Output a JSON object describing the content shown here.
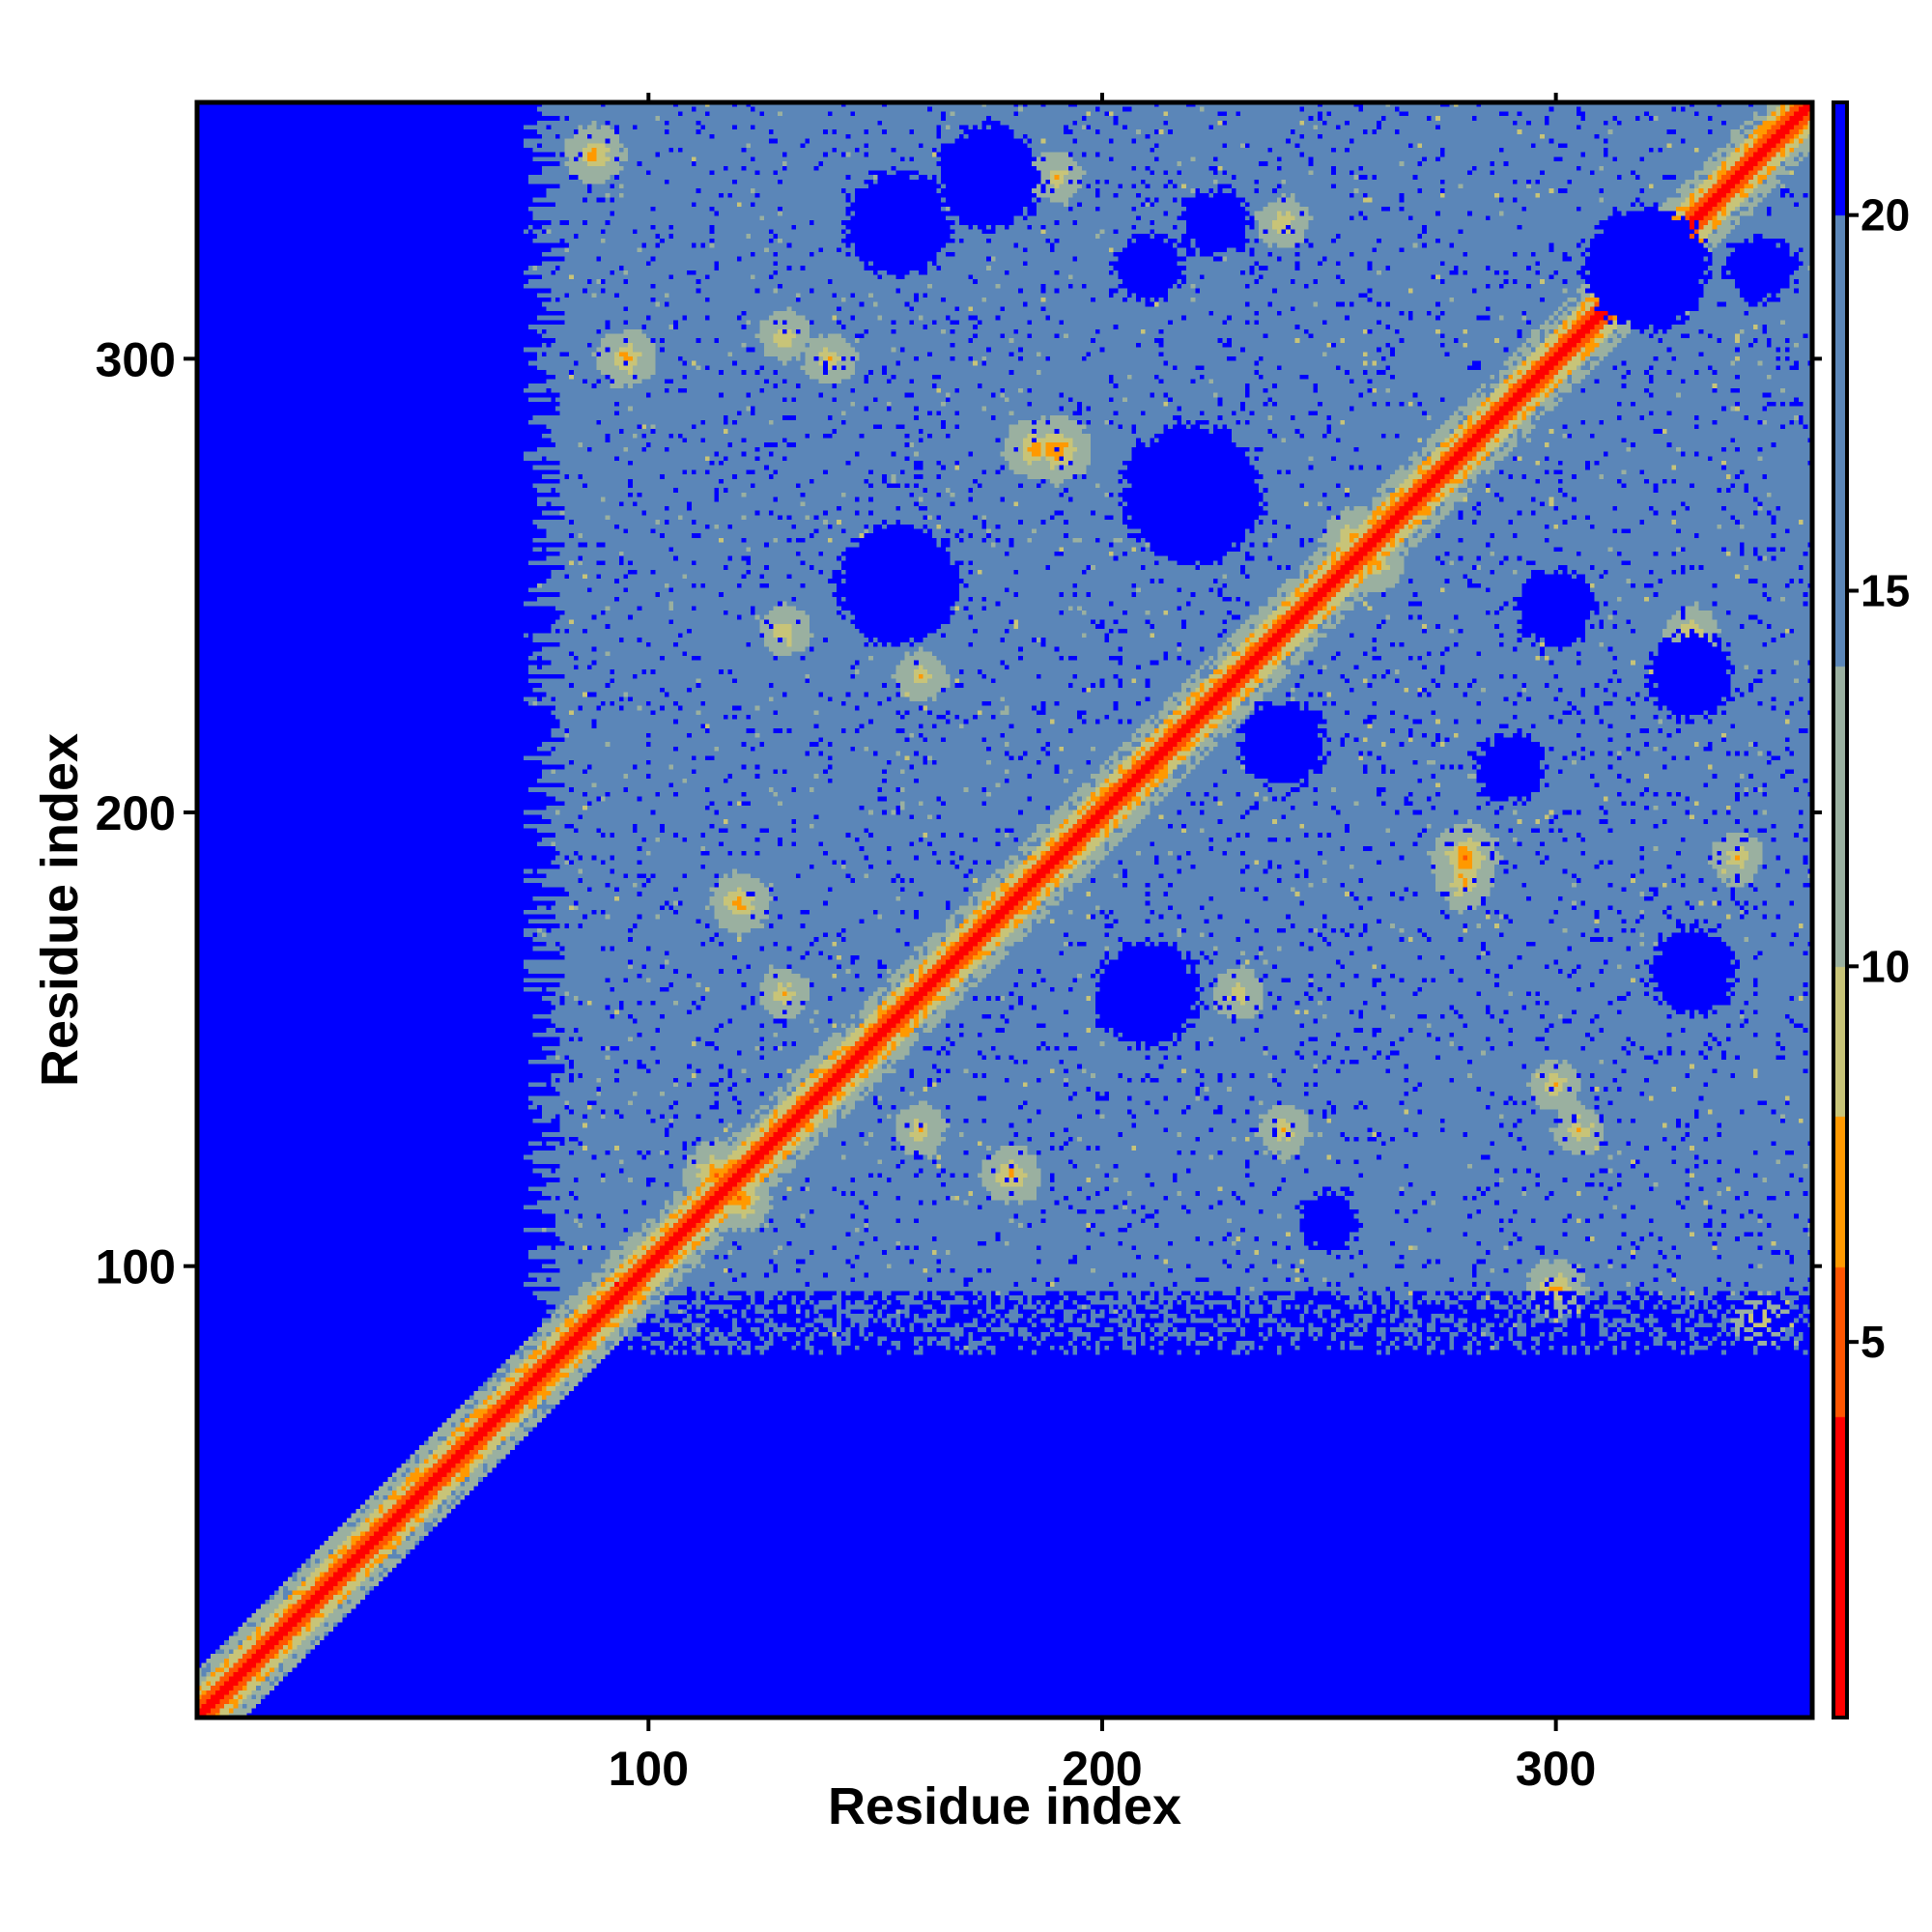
{
  "chart_data": {
    "type": "heatmap",
    "title": "",
    "xlabel": "Residue index",
    "ylabel": "Residue index",
    "n_residues": 356,
    "xlim": [
      1,
      356
    ],
    "ylim": [
      1,
      356
    ],
    "x_ticks": [
      100,
      200,
      300
    ],
    "y_ticks": [
      100,
      200,
      300
    ],
    "colorbar": {
      "ticks": [
        5,
        10,
        15,
        20
      ],
      "range": [
        0,
        21.5
      ],
      "levels": [
        {
          "max": 4,
          "color": "#ff0000"
        },
        {
          "max": 6,
          "color": "#ff5500"
        },
        {
          "max": 8,
          "color": "#ff9900"
        },
        {
          "max": 10,
          "color": "#c8c478"
        },
        {
          "max": 14,
          "color": "#9ab0a0"
        },
        {
          "max": 20,
          "color": "#5b86b8"
        },
        {
          "max": 21.5,
          "color": "#0000ff"
        }
      ]
    },
    "description_note": "Residue-residue distance map; lower-left triangle masked except near diagonal; upper triangle shows contact regions.",
    "contact_hotspots": [
      {
        "i": 115,
        "j": 120,
        "d": 5
      },
      {
        "i": 280,
        "j": 190,
        "d": 5
      },
      {
        "i": 180,
        "j": 120,
        "d": 6
      },
      {
        "i": 300,
        "j": 95,
        "d": 6
      },
      {
        "i": 260,
        "j": 255,
        "d": 6
      },
      {
        "i": 185,
        "j": 280,
        "d": 6
      },
      {
        "i": 345,
        "j": 88,
        "d": 6
      },
      {
        "i": 130,
        "j": 160,
        "d": 7
      },
      {
        "i": 230,
        "j": 160,
        "d": 7
      },
      {
        "i": 330,
        "j": 240,
        "d": 7
      },
      {
        "i": 340,
        "j": 190,
        "d": 7
      },
      {
        "i": 240,
        "j": 130,
        "d": 7
      },
      {
        "i": 140,
        "j": 300,
        "d": 7
      },
      {
        "i": 88,
        "j": 345,
        "d": 7
      },
      {
        "i": 305,
        "j": 130,
        "d": 7
      }
    ],
    "blue_pockets": [
      {
        "i": 155,
        "j": 250,
        "r": 12
      },
      {
        "i": 220,
        "j": 270,
        "r": 14
      },
      {
        "i": 210,
        "j": 160,
        "r": 10
      },
      {
        "i": 320,
        "j": 320,
        "r": 12
      },
      {
        "i": 240,
        "j": 215,
        "r": 8
      },
      {
        "i": 330,
        "j": 230,
        "r": 8
      },
      {
        "i": 175,
        "j": 340,
        "r": 10
      },
      {
        "i": 155,
        "j": 330,
        "r": 10
      },
      {
        "i": 300,
        "j": 245,
        "r": 7
      },
      {
        "i": 290,
        "j": 210,
        "r": 6
      },
      {
        "i": 330,
        "j": 165,
        "r": 8
      },
      {
        "i": 225,
        "j": 330,
        "r": 6
      },
      {
        "i": 250,
        "j": 110,
        "r": 5
      },
      {
        "i": 345,
        "j": 320,
        "r": 6
      },
      {
        "i": 210,
        "j": 320,
        "r": 6
      }
    ]
  }
}
